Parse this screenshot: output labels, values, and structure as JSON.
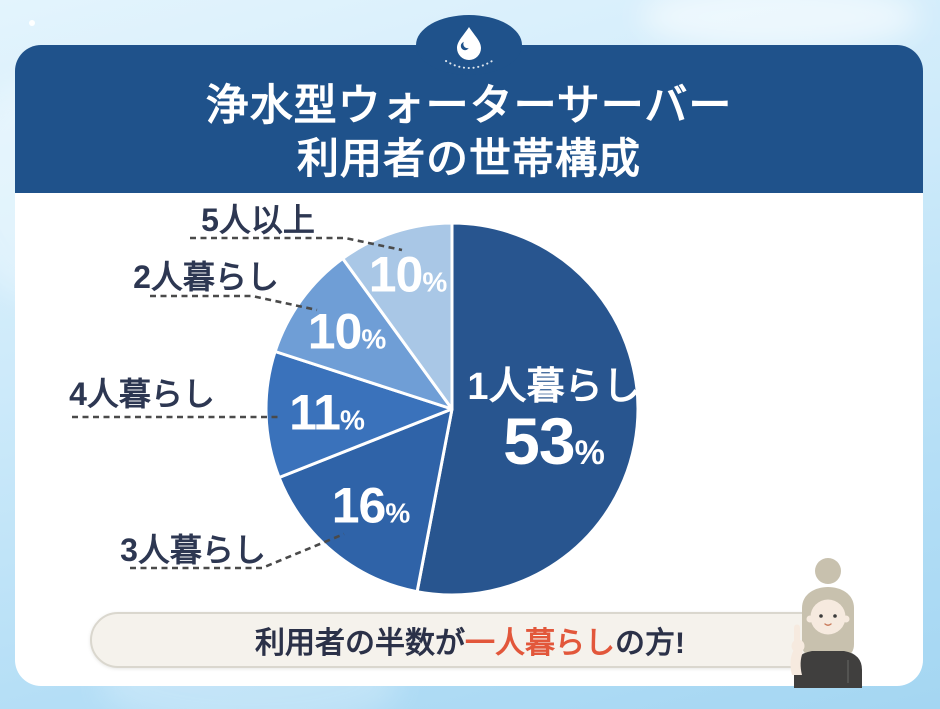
{
  "header": {
    "title_line1": "浄水型ウォーターサーバー",
    "title_line2": "利用者の世帯構成",
    "icon": "water-drop-icon"
  },
  "chart_data": {
    "type": "pie",
    "title": "浄水型ウォーターサーバー 利用者の世帯構成",
    "unit": "%",
    "start_angle_deg": 0,
    "direction": "clockwise",
    "legend_position": "external-callout-labels",
    "slices": [
      {
        "label": "1人暮らし",
        "value": 53,
        "color": "#28558F",
        "label_inside": true,
        "label_r": 0.55
      },
      {
        "label": "3人暮らし",
        "value": 16,
        "color": "#2F63A8",
        "label_inside": false,
        "label_r": 0.68
      },
      {
        "label": "4人暮らし",
        "value": 11,
        "color": "#3A72BB",
        "label_inside": false,
        "label_r": 0.67
      },
      {
        "label": "2人暮らし",
        "value": 10,
        "color": "#6F9ED6",
        "label_inside": false,
        "label_r": 0.7
      },
      {
        "label": "5人以上",
        "value": 10,
        "color": "#A9C7E6",
        "label_inside": false,
        "label_r": 0.76
      }
    ]
  },
  "callout": {
    "text_prefix": "利用者の半数が",
    "text_highlight": "一人暮らし",
    "text_suffix": "の方!"
  },
  "colors": {
    "header_bg": "#1F528B",
    "card_bg": "#FFFFFF",
    "label_text": "#2D3752",
    "leader_line": "#4A4A4A",
    "banner_bg": "#F5F2EC",
    "banner_border": "#DAD7CE",
    "banner_text": "#2B3148",
    "highlight": "#E2573B",
    "background_top": "#E3F4FD",
    "background_bottom": "#A4D6F2"
  }
}
